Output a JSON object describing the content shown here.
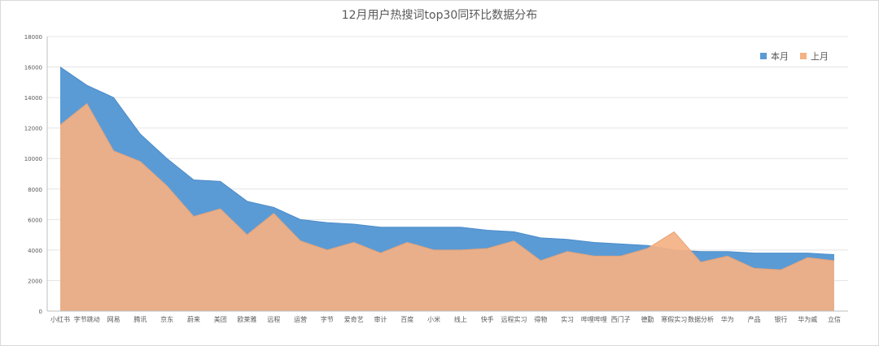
{
  "chart_data": {
    "type": "area",
    "title": "12月用户热搜词top30同环比数据分布",
    "xlabel": "",
    "ylabel": "",
    "ylim": [
      0,
      18000
    ],
    "yticks": [
      0,
      2000,
      4000,
      6000,
      8000,
      10000,
      12000,
      14000,
      16000,
      18000
    ],
    "grid": true,
    "legend_position": "top-right",
    "categories": [
      "小红书",
      "字节跳动",
      "网易",
      "腾讯",
      "京东",
      "蔚来",
      "美团",
      "欧莱雅",
      "远程",
      "运营",
      "字节",
      "爱奇艺",
      "审计",
      "百度",
      "小米",
      "线上",
      "快手",
      "远程实习",
      "得物",
      "实习",
      "哔哩哔哩",
      "西门子",
      "德勤",
      "寒假实习",
      "数据分析",
      "华为",
      "产品",
      "银行",
      "华为威",
      "立信"
    ],
    "series": [
      {
        "name": "本月",
        "color": "#5b9bd5",
        "values": [
          16000,
          14800,
          14000,
          11600,
          10000,
          8600,
          8500,
          7200,
          6800,
          6000,
          5800,
          5700,
          5500,
          5500,
          5500,
          5500,
          5300,
          5200,
          4800,
          4700,
          4500,
          4400,
          4300,
          4000,
          3900,
          3900,
          3800,
          3800,
          3800,
          3700
        ]
      },
      {
        "name": "上月",
        "color": "#f4b183",
        "values": [
          12200,
          13600,
          10500,
          9800,
          8200,
          6200,
          6700,
          5000,
          6400,
          4600,
          4000,
          4500,
          3800,
          4500,
          4000,
          4000,
          4100,
          4600,
          3300,
          3900,
          3600,
          3600,
          4100,
          5200,
          3200,
          3600,
          2800,
          2700,
          3500,
          3300
        ]
      }
    ]
  }
}
